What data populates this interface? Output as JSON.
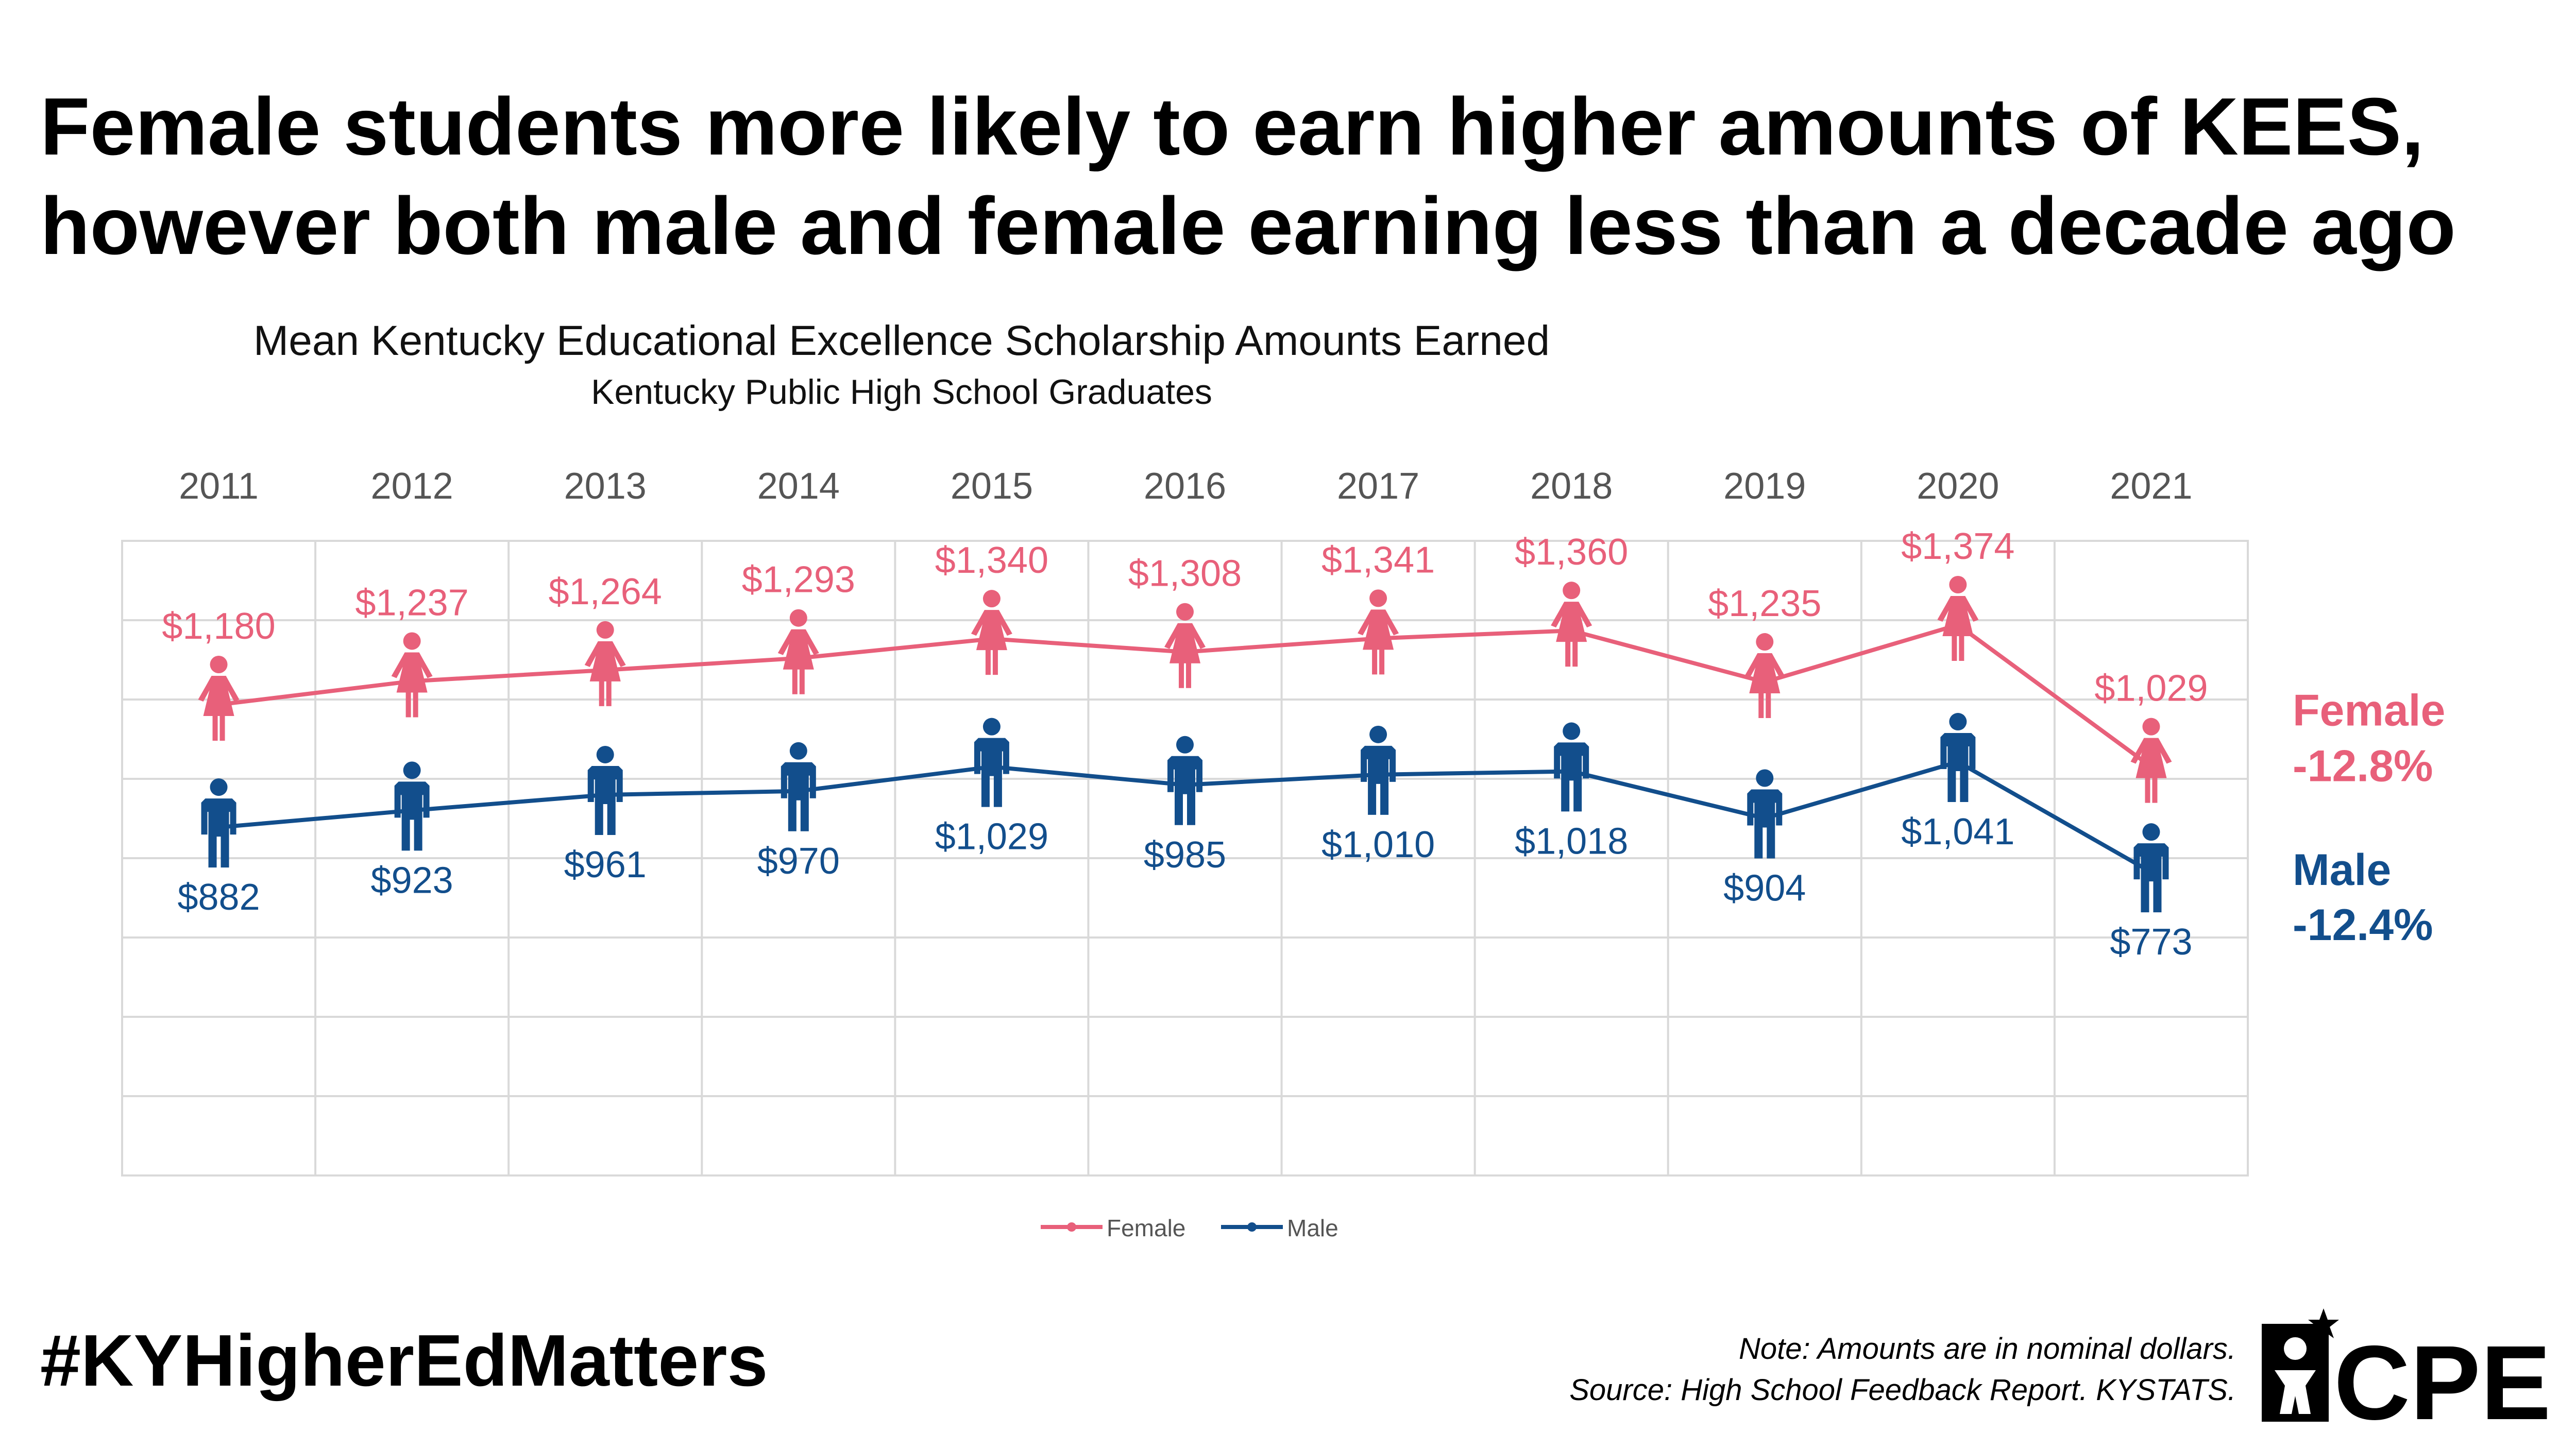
{
  "headline": {
    "line1": "Female students more likely to earn higher amounts of KEES,",
    "line2": "however both male and female earning less than a decade ago"
  },
  "chart_data": {
    "type": "line",
    "title": "Mean Kentucky Educational Excellence Scholarship Amounts Earned",
    "subtitle": "Kentucky Public High School Graduates",
    "categories": [
      "2011",
      "2012",
      "2013",
      "2014",
      "2015",
      "2016",
      "2017",
      "2018",
      "2019",
      "2020",
      "2021"
    ],
    "series": [
      {
        "name": "Female",
        "color": "#E8607A",
        "icon": "female-person-icon",
        "values": [
          1180,
          1237,
          1264,
          1293,
          1340,
          1308,
          1341,
          1360,
          1235,
          1374,
          1029
        ],
        "labels": [
          "$1,180",
          "$1,237",
          "$1,264",
          "$1,293",
          "$1,340",
          "$1,308",
          "$1,341",
          "$1,360",
          "$1,235",
          "$1,374",
          "$1,029"
        ],
        "change_label": "Female",
        "change_value": "-12.8%"
      },
      {
        "name": "Male",
        "color": "#124E8C",
        "icon": "male-person-icon",
        "values": [
          882,
          923,
          961,
          970,
          1029,
          985,
          1010,
          1018,
          904,
          1041,
          773
        ],
        "labels": [
          "$882",
          "$923",
          "$961",
          "$970",
          "$1,029",
          "$985",
          "$1,010",
          "$1,018",
          "$904",
          "$1,041",
          "$773"
        ],
        "change_label": "Male",
        "change_value": "-12.4%"
      }
    ],
    "xaxis_position": "top",
    "grid": true,
    "legend": "bottom-center"
  },
  "footer": {
    "hashtag": "#KYHigherEdMatters",
    "note": "Note: Amounts are in nominal dollars.",
    "source": "Source: High School Feedback Report. KYSTATS.",
    "logo_text": "CPE"
  }
}
